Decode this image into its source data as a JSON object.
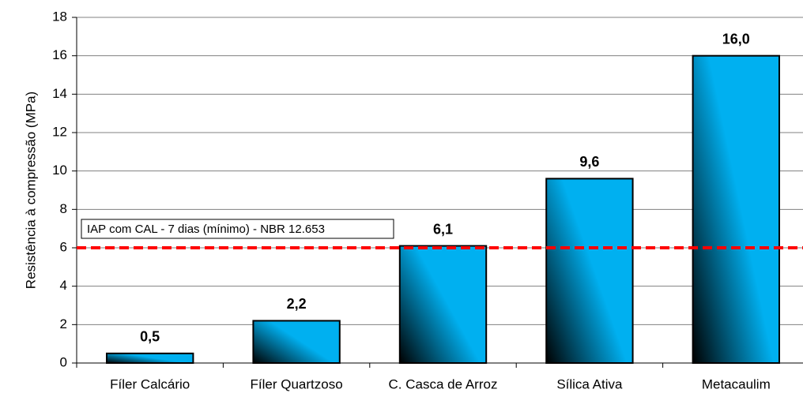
{
  "chart_data": {
    "type": "bar",
    "y_label": "Resistência à compressão (MPa)",
    "categories": [
      "Fíler Calcário",
      "Fíler Quartzoso",
      "C. Casca de Arroz",
      "Sílica Ativa",
      "Metacaulim"
    ],
    "values": [
      0.5,
      2.2,
      6.1,
      9.6,
      16.0
    ],
    "value_labels": [
      "0,5",
      "2,2",
      "6,1",
      "9,6",
      "16,0"
    ],
    "color": "#00b0f0",
    "ylim": [
      0,
      18
    ],
    "yticks": [
      0,
      2,
      4,
      6,
      8,
      10,
      12,
      14,
      16,
      18
    ],
    "grid": true,
    "reference_line": {
      "value": 6,
      "label": "IAP com CAL - 7 dias (mínimo) - NBR 12.653",
      "color": "#ff0000"
    }
  }
}
